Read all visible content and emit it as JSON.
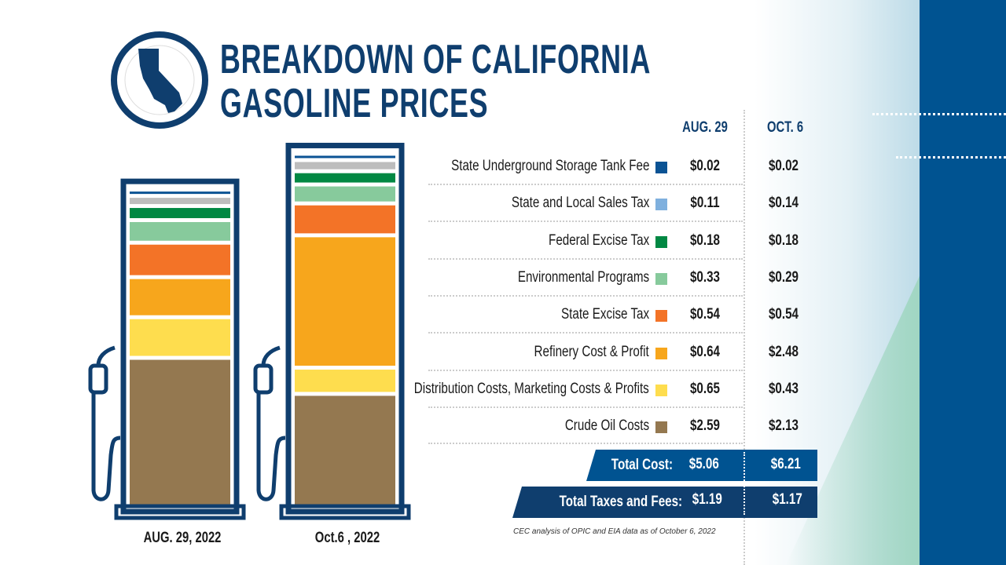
{
  "title": [
    "BREAKDOWN OF CALIFORNIA",
    "GASOLINE PRICES"
  ],
  "columns": [
    "AUG. 29",
    "OCT. 6"
  ],
  "pump_labels": [
    "AUG. 29, 2022",
    "Oct.6 , 2022"
  ],
  "chart_data": {
    "type": "stacked-bar",
    "categories": [
      "AUG. 29, 2022",
      "Oct.6 , 2022"
    ],
    "series": [
      {
        "name": "Crude Oil Costs",
        "color": "#947850",
        "values": [
          2.59,
          2.13
        ]
      },
      {
        "name": "Distribution Costs, Marketing Costs & Profits",
        "color": "#fedd4e",
        "values": [
          0.65,
          0.43
        ]
      },
      {
        "name": "Refinery Cost & Profit",
        "color": "#f7a61c",
        "values": [
          0.64,
          2.48
        ]
      },
      {
        "name": "State Excise Tax",
        "color": "#f37327",
        "values": [
          0.54,
          0.54
        ]
      },
      {
        "name": "Environmental Programs",
        "color": "#87ca9c",
        "values": [
          0.33,
          0.29
        ]
      },
      {
        "name": "Federal Excise Tax",
        "color": "#018843",
        "values": [
          0.18,
          0.18
        ]
      },
      {
        "name": "State and Local Sales Tax",
        "color": "#7fb0de",
        "pump_color": "#bdbdbd",
        "values": [
          0.11,
          0.14
        ]
      },
      {
        "name": "State Underground Storage Tank Fee",
        "color": "#0b5394",
        "values": [
          0.02,
          0.02
        ]
      }
    ]
  },
  "rows": [
    {
      "label": "State Underground Storage Tank Fee",
      "aug": "$0.02",
      "oct": "$0.02"
    },
    {
      "label": "State and Local Sales Tax",
      "aug": "$0.11",
      "oct": "$0.14"
    },
    {
      "label": "Federal Excise Tax",
      "aug": "$0.18",
      "oct": "$0.18"
    },
    {
      "label": "Environmental Programs",
      "aug": "$0.33",
      "oct": "$0.29"
    },
    {
      "label": "State Excise Tax",
      "aug": "$0.54",
      "oct": "$0.54"
    },
    {
      "label": "Refinery Cost & Profit",
      "aug": "$0.64",
      "oct": "$2.48"
    },
    {
      "label": "Distribution Costs, Marketing Costs & Profits",
      "aug": "$0.65",
      "oct": "$0.43"
    },
    {
      "label": "Crude Oil Costs",
      "aug": "$2.59",
      "oct": "$2.13"
    }
  ],
  "totals": {
    "cost_label": "Total Cost:",
    "cost_aug": "$5.06",
    "cost_oct": "$6.21",
    "tax_label": "Total Taxes and Fees:",
    "tax_aug": "$1.19",
    "tax_oct": "$1.17"
  },
  "footnote": "CEC analysis of OPIC and EIA data as of October 6, 2022",
  "colors": {
    "navy": "#0f3e6e",
    "blue": "#005391"
  }
}
